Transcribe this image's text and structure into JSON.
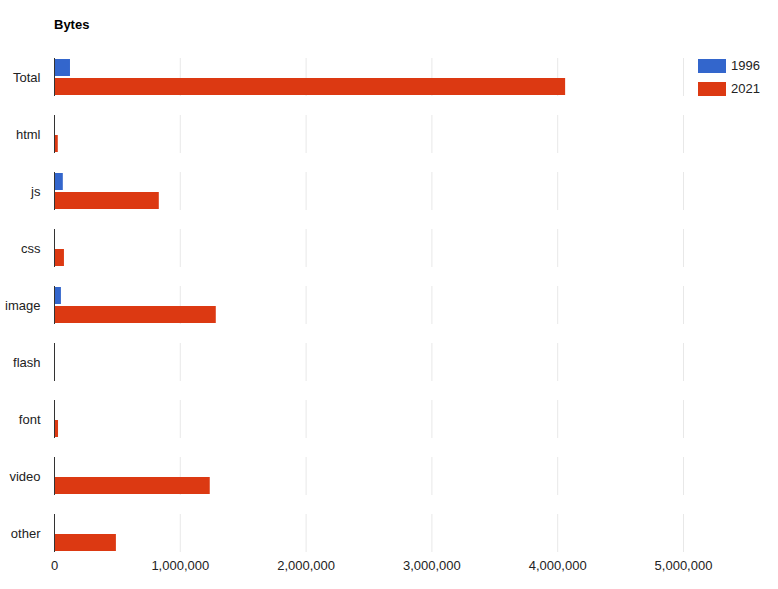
{
  "chart_data": {
    "type": "bar",
    "orientation": "horizontal",
    "title": "Bytes",
    "categories": [
      "Total",
      "html",
      "js",
      "css",
      "image",
      "flash",
      "font",
      "video",
      "other"
    ],
    "series": [
      {
        "name": "1996",
        "color": "#3366cc",
        "values": [
          127000,
          0,
          70000,
          0,
          55000,
          0,
          0,
          0,
          0
        ]
      },
      {
        "name": "2021",
        "color": "#dc3912",
        "values": [
          4063000,
          30000,
          833000,
          79000,
          1286000,
          0,
          32000,
          1238000,
          492000
        ]
      }
    ],
    "xlim": [
      0,
      5000000
    ],
    "xticks": [
      0,
      {
        "value": 1000000,
        "label": "1,000,000"
      },
      {
        "value": 2000000,
        "label": "2,000,000"
      },
      {
        "value": 3000000,
        "label": "3,000,000"
      },
      {
        "value": 4000000,
        "label": "4,000,000"
      },
      {
        "value": 5000000,
        "label": "5,000,000"
      }
    ],
    "grid": true,
    "legend": "top-right"
  }
}
